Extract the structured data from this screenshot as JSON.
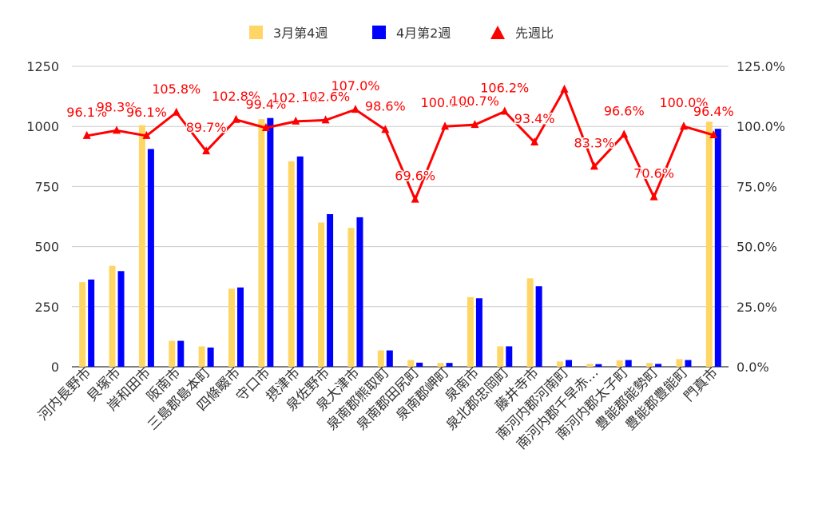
{
  "chart_data": {
    "type": "bar",
    "legend_position": "top",
    "grid": true,
    "categories": [
      "河内長野市",
      "貝塚市",
      "岸和田市",
      "阪南市",
      "三島郡島本町",
      "四條畷市",
      "守口市",
      "摂津市",
      "泉佐野市",
      "泉大津市",
      "泉南郡熊取町",
      "泉南郡田尻町",
      "泉南郡岬町",
      "泉南市",
      "泉北郡忠岡町",
      "藤井寺市",
      "南河内郡河南町",
      "南河内郡千早赤…",
      "南河内郡太子町",
      "豊能郡能勢町",
      "豊能郡豊能町",
      "門真市"
    ],
    "series": [
      {
        "name": "3月第4週",
        "type": "bar",
        "axis": "left",
        "color": "#FFD666",
        "values": [
          352,
          420,
          1005,
          108,
          85,
          325,
          1030,
          855,
          600,
          578,
          68,
          28,
          16,
          290,
          85,
          368,
          22,
          12,
          27,
          16,
          32,
          1020
        ]
      },
      {
        "name": "4月第2週",
        "type": "bar",
        "axis": "left",
        "color": "#0000FF",
        "values": [
          363,
          398,
          906,
          108,
          80,
          330,
          1035,
          875,
          635,
          622,
          68,
          17,
          16,
          285,
          85,
          335,
          28,
          11,
          28,
          12,
          28,
          990
        ]
      },
      {
        "name": "先週比",
        "type": "line",
        "axis": "right",
        "color": "#FF0000",
        "marker": "triangle",
        "values": [
          96.1,
          98.3,
          96.1,
          105.8,
          89.7,
          102.8,
          99.4,
          102.1,
          102.6,
          107.0,
          98.6,
          69.6,
          100.0,
          100.7,
          106.2,
          93.4,
          115.4,
          83.3,
          96.6,
          70.6,
          100.0,
          96.4
        ]
      }
    ],
    "data_labels": [
      "96.1%",
      "98.3%",
      "96.1%",
      "105.8%",
      "89.7%",
      "102.8%",
      "99.4%",
      "102.1%",
      "102.6%",
      "107.0%",
      "98.6%",
      "69.6%",
      "100.0%",
      "100.7%",
      "106.2%",
      "93.4%",
      "",
      "83.3%",
      "96.6%",
      "70.6%",
      "100.0%",
      "96.4%"
    ],
    "y_left": {
      "min": 0,
      "max": 1250,
      "ticks": [
        "0",
        "250",
        "500",
        "750",
        "1000",
        "1250"
      ]
    },
    "y_right": {
      "min": 0,
      "max": 125,
      "ticks": [
        "0.0%",
        "25.0%",
        "50.0%",
        "75.0%",
        "100.0%",
        "125.0%"
      ]
    }
  }
}
